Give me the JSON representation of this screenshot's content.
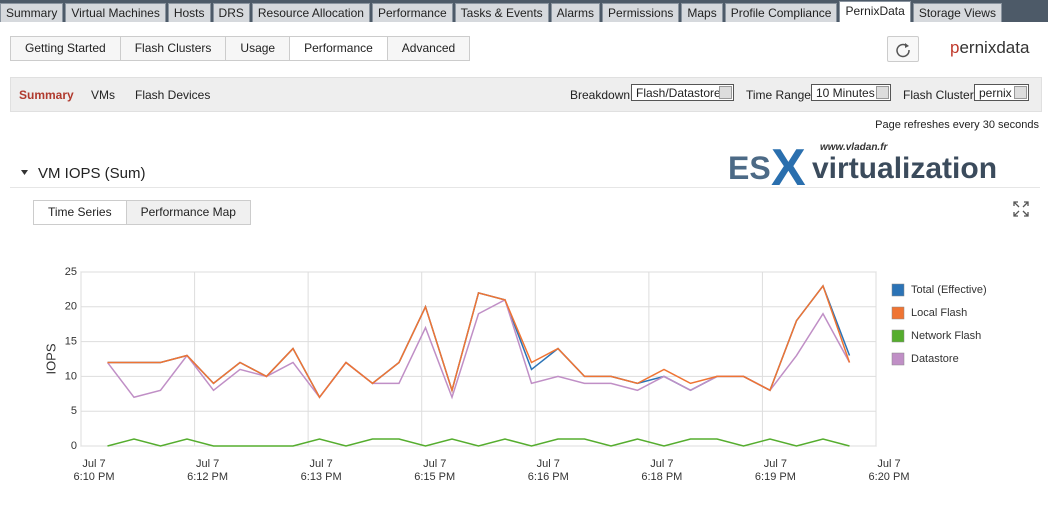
{
  "tabs": {
    "items": [
      "Summary",
      "Virtual Machines",
      "Hosts",
      "DRS",
      "Resource Allocation",
      "Performance",
      "Tasks & Events",
      "Alarms",
      "Permissions",
      "Maps",
      "Profile Compliance",
      "PernixData",
      "Storage Views"
    ],
    "active": 11
  },
  "subtabs": {
    "items": [
      "Getting Started",
      "Flash Clusters",
      "Usage",
      "Performance",
      "Advanced"
    ],
    "active": 3
  },
  "brand": "pernixdata",
  "nav": {
    "items": [
      "Summary",
      "VMs",
      "Flash Devices"
    ],
    "active": 0
  },
  "filters": [
    {
      "label": "Breakdown:",
      "value": "Flash/Datastore"
    },
    {
      "label": "Time Range:",
      "value": "10 Minutes"
    },
    {
      "label": "Flash Cluster:",
      "value": "pernix"
    }
  ],
  "refresh_note": "Page refreshes every 30 seconds",
  "section_title": "VM IOPS (Sum)",
  "watermark": {
    "url": "www.vladan.fr",
    "prefix": "ES",
    "mark": "X",
    "suffix": "virtualization"
  },
  "view_tabs": {
    "items": [
      "Time Series",
      "Performance Map"
    ],
    "active": 0
  },
  "chart_data": {
    "type": "line",
    "ylabel": "IOPS",
    "x": [
      1,
      2,
      3,
      4,
      5,
      6,
      7,
      8,
      9,
      10,
      11,
      12,
      13,
      14,
      15,
      16,
      17,
      18,
      19,
      20,
      21,
      22,
      23,
      24,
      25,
      26,
      27,
      28,
      29
    ],
    "xlim": [
      0,
      30
    ],
    "xticks": [
      {
        "value": 0,
        "label": "Jul 7\n6:10 PM"
      },
      {
        "value": 4.286,
        "label": "Jul 7\n6:12 PM"
      },
      {
        "value": 8.571,
        "label": "Jul 7\n6:13 PM"
      },
      {
        "value": 12.857,
        "label": "Jul 7\n6:15 PM"
      },
      {
        "value": 17.143,
        "label": "Jul 7\n6:16 PM"
      },
      {
        "value": 21.429,
        "label": "Jul 7\n6:18 PM"
      },
      {
        "value": 25.714,
        "label": "Jul 7\n6:19 PM"
      },
      {
        "value": 30,
        "label": "Jul 7\n6:20 PM"
      }
    ],
    "ylim": [
      0,
      25
    ],
    "yticks": [
      0,
      5,
      10,
      15,
      20,
      25
    ],
    "grid": true,
    "legend": "right",
    "series": [
      {
        "name": "Total (Effective)",
        "color": "#2b73b6",
        "values": [
          12,
          12,
          12,
          13,
          9,
          12,
          10,
          14,
          7,
          12,
          9,
          12,
          20,
          8,
          22,
          21,
          11,
          14,
          10,
          10,
          9,
          10,
          8,
          10,
          10,
          8,
          18,
          23,
          13
        ]
      },
      {
        "name": "Local Flash",
        "color": "#ef7433",
        "values": [
          12,
          12,
          12,
          13,
          9,
          12,
          10,
          14,
          7,
          12,
          9,
          12,
          20,
          8,
          22,
          21,
          12,
          14,
          10,
          10,
          9,
          11,
          9,
          10,
          10,
          8,
          18,
          23,
          12
        ]
      },
      {
        "name": "Network Flash",
        "color": "#55ad2e",
        "values": [
          0,
          1,
          0,
          1,
          0,
          0,
          0,
          0,
          1,
          0,
          1,
          1,
          0,
          1,
          0,
          1,
          0,
          1,
          1,
          0,
          1,
          0,
          1,
          1,
          0,
          1,
          0,
          1,
          0
        ]
      },
      {
        "name": "Datastore",
        "color": "#c08fc6",
        "values": [
          12,
          7,
          8,
          13,
          8,
          11,
          10,
          12,
          7,
          12,
          9,
          9,
          17,
          7,
          19,
          21,
          9,
          10,
          9,
          9,
          8,
          10,
          8,
          10,
          10,
          8,
          13,
          19,
          12
        ]
      }
    ]
  }
}
